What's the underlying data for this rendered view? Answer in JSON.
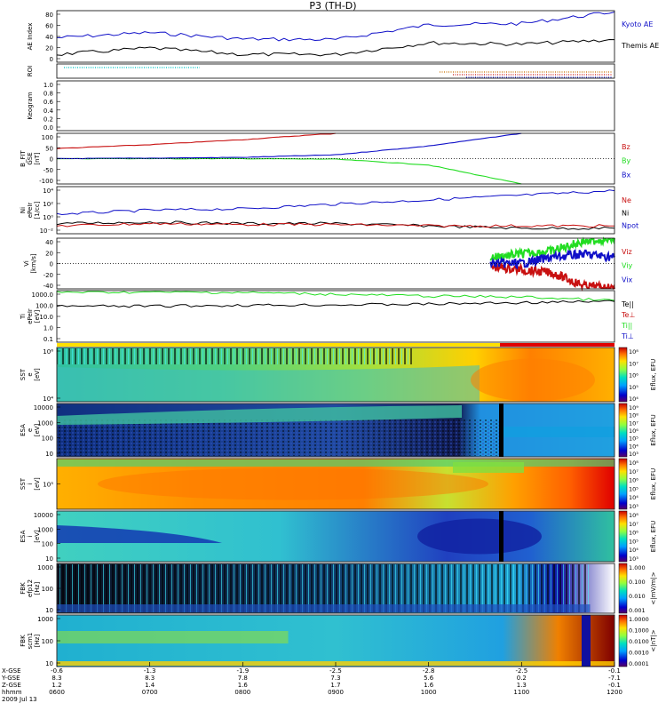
{
  "title": "P3 (TH-D)",
  "date_label": "2009 Jul 13",
  "colors": {
    "blue": "#1010c8",
    "black": "#000000",
    "red": "#c81010",
    "green": "#22dd22",
    "cyan": "#22cccc",
    "orange": "#c87000"
  },
  "panels": [
    {
      "id": "ae",
      "ylabel": [
        "AE Index"
      ],
      "ticks": [
        "80",
        "60",
        "40",
        "20",
        "0"
      ],
      "legend": [
        {
          "text": "Kyoto AE",
          "color": "#1010c8"
        },
        {
          "text": "Themis AE",
          "color": "#000000"
        }
      ]
    },
    {
      "id": "roi",
      "ylabel": [
        "ROI"
      ],
      "ticks": [],
      "legend": []
    },
    {
      "id": "keogram",
      "ylabel": [
        "Keogram"
      ],
      "ticks": [
        "1.0",
        "0.8",
        "0.6",
        "0.4",
        "0.2",
        "0.0"
      ],
      "legend": []
    },
    {
      "id": "bfield",
      "ylabel": [
        "B_FIT",
        "GSE",
        "[nT]"
      ],
      "ticks": [
        "100",
        "50",
        "0",
        "-50",
        "-100"
      ],
      "legend": [
        {
          "text": "Bz",
          "color": "#c81010"
        },
        {
          "text": "By",
          "color": "#22dd22"
        },
        {
          "text": "Bx",
          "color": "#1010c8"
        }
      ]
    },
    {
      "id": "density",
      "ylabel": [
        "Ni",
        "ePeIr",
        "[1/cc]"
      ],
      "ticks": [
        "10⁴",
        "10²",
        "10⁰",
        "10⁻²"
      ],
      "legend": [
        {
          "text": "Ne",
          "color": "#c81010"
        },
        {
          "text": "Ni",
          "color": "#000000"
        },
        {
          "text": "Npot",
          "color": "#1010c8"
        }
      ]
    },
    {
      "id": "velocity",
      "ylabel": [
        "Vi",
        "[km/s]"
      ],
      "ticks": [
        "40",
        "20",
        "0",
        "-20",
        "-40"
      ],
      "legend": [
        {
          "text": "Viz",
          "color": "#c81010"
        },
        {
          "text": "Viy",
          "color": "#22dd22"
        },
        {
          "text": "Vix",
          "color": "#1010c8"
        }
      ]
    },
    {
      "id": "temp",
      "ylabel": [
        "Ti",
        "ePeIr",
        "[eV]"
      ],
      "ticks": [
        "1000.0",
        "100.0",
        "10.0",
        "1.0",
        "0.1"
      ],
      "legend": [
        {
          "text": "Te||",
          "color": "#000000"
        },
        {
          "text": "Te⊥",
          "color": "#c81010"
        },
        {
          "text": "Ti||",
          "color": "#22dd22"
        },
        {
          "text": "Ti⊥",
          "color": "#1010c8"
        }
      ]
    },
    {
      "id": "sst_e",
      "ylabel": [
        "SST",
        "e",
        "[eV]"
      ],
      "ticks": [
        "10⁶",
        "10⁴"
      ],
      "cbar": [
        "10⁸",
        "10⁷",
        "10⁶",
        "10⁵",
        "10⁴"
      ],
      "cbar_label": "Eflux, EFU"
    },
    {
      "id": "esa_e",
      "ylabel": [
        "ESA",
        "e",
        "[eV]"
      ],
      "ticks": [
        "10000",
        "1000",
        "100",
        "10"
      ],
      "cbar": [
        "10⁹",
        "10⁸",
        "10⁷",
        "10⁶",
        "10⁵",
        "10⁴",
        "10³"
      ],
      "cbar_label": "Eflux, EFU"
    },
    {
      "id": "sst_i",
      "ylabel": [
        "SST",
        "i",
        "[eV]"
      ],
      "ticks": [
        "10⁵"
      ],
      "cbar": [
        "10⁸",
        "10⁷",
        "10⁶",
        "10⁵",
        "10⁴",
        "10³"
      ],
      "cbar_label": "Eflux, EFU"
    },
    {
      "id": "esa_i",
      "ylabel": [
        "ESA",
        "i",
        "[eV]"
      ],
      "ticks": [
        "10000",
        "1000",
        "100",
        "10"
      ],
      "cbar": [
        "10⁸",
        "10⁷",
        "10⁶",
        "10⁵",
        "10⁴",
        "10³"
      ],
      "cbar_label": "Eflux, EFU"
    },
    {
      "id": "fbk_e",
      "ylabel": [
        "FBK",
        "efp12",
        "[Hz]"
      ],
      "ticks": [
        "1000",
        "100",
        "10"
      ],
      "cbar": [
        "1.000",
        "0.100",
        "0.010",
        "0.001"
      ],
      "cbar_label": "<|mV/m|>"
    },
    {
      "id": "fbk_b",
      "ylabel": [
        "FBK",
        "scm1",
        "[Hz]"
      ],
      "ticks": [
        "1000",
        "100",
        "10"
      ],
      "cbar": [
        "1.0000",
        "0.1000",
        "0.0100",
        "0.0010",
        "0.0001"
      ],
      "cbar_label": "<|nT|>"
    }
  ],
  "xaxis": {
    "row_labels": [
      "X-GSE",
      "Y-GSE",
      "Z-GSE",
      "hhmm"
    ],
    "columns": [
      [
        "-0.6",
        "8.3",
        "1.2",
        "0600"
      ],
      [
        "-1.3",
        "8.3",
        "1.4",
        "0700"
      ],
      [
        "-1.9",
        "7.8",
        "1.6",
        "0800"
      ],
      [
        "-2.5",
        "7.3",
        "1.7",
        "0900"
      ],
      [
        "-2.8",
        "5.6",
        "1.6",
        "1000"
      ],
      [
        "-2.5",
        "0.2",
        "1.3",
        "1100"
      ],
      [
        "-0.1",
        "-7.1",
        "-0.1",
        "1200"
      ]
    ]
  },
  "chart_data": [
    {
      "type": "line",
      "name": "AE Index",
      "x": [
        "0600",
        "0700",
        "0800",
        "0900",
        "1000",
        "1100",
        "1200"
      ],
      "series": [
        {
          "name": "Kyoto AE",
          "values": [
            38,
            46,
            36,
            35,
            58,
            60,
            78
          ]
        },
        {
          "name": "Themis AE",
          "values": [
            12,
            22,
            12,
            12,
            30,
            28,
            35
          ]
        }
      ],
      "ylim": [
        0,
        80
      ]
    },
    {
      "type": "line",
      "name": "B_FIT GSE",
      "x": [
        "0600",
        "0700",
        "0800",
        "0900",
        "1000",
        "1100",
        "1200"
      ],
      "series": [
        {
          "name": "Bz",
          "values": [
            40,
            55,
            75,
            100,
            null,
            null,
            null
          ]
        },
        {
          "name": "By",
          "values": [
            0,
            0,
            0,
            -2,
            -25,
            -100,
            null
          ]
        },
        {
          "name": "Bx",
          "values": [
            0,
            2,
            5,
            15,
            50,
            100,
            null
          ]
        }
      ],
      "ylim": [
        -100,
        100
      ]
    },
    {
      "type": "line",
      "name": "Ni",
      "x": [
        "0600",
        "0700",
        "0800",
        "0900",
        "1000",
        "1100",
        "1200"
      ],
      "series": [
        {
          "name": "Npot",
          "values": [
            3,
            10,
            15,
            60,
            200,
            800,
            3000
          ]
        },
        {
          "name": "Ni",
          "values": [
            0.2,
            0.3,
            0.2,
            0.2,
            0.1,
            0.05,
            0.05
          ]
        },
        {
          "name": "Ne",
          "values": [
            0.1,
            0.2,
            0.15,
            0.15,
            0.1,
            0.1,
            0.1
          ]
        }
      ],
      "ylim": [
        0.01,
        10000
      ]
    },
    {
      "type": "line",
      "name": "Vi",
      "x": [
        "1040",
        "1100",
        "1120",
        "1140",
        "1200"
      ],
      "series": [
        {
          "name": "Viz",
          "values": [
            -5,
            -10,
            -15,
            -35,
            -40
          ]
        },
        {
          "name": "Viy",
          "values": [
            10,
            15,
            20,
            35,
            40
          ]
        },
        {
          "name": "Vix",
          "values": [
            0,
            0,
            10,
            15,
            10
          ]
        }
      ],
      "ylim": [
        -40,
        40
      ]
    },
    {
      "type": "line",
      "name": "Ti",
      "x": [
        "0600",
        "0700",
        "0800",
        "0900",
        "1000",
        "1100",
        "1200"
      ],
      "series": [
        {
          "name": "Ti||",
          "values": [
            1500,
            1500,
            1400,
            1000,
            700,
            600,
            300
          ]
        },
        {
          "name": "Te||",
          "values": [
            100,
            100,
            120,
            130,
            150,
            200,
            250
          ]
        }
      ],
      "ylim": [
        0.1,
        2000
      ]
    }
  ]
}
